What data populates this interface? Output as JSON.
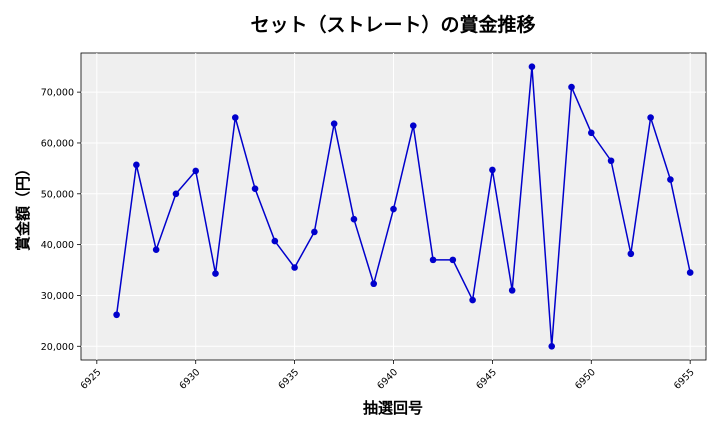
{
  "chart_data": {
    "type": "line",
    "title": "セット（ストレート）の賞金推移",
    "xlabel": "抽選回号",
    "ylabel": "賞金額（円）",
    "xlim": [
      6924.2,
      6955.8
    ],
    "ylim": [
      17300,
      77700
    ],
    "x_ticks": [
      6925,
      6930,
      6935,
      6940,
      6945,
      6950,
      6955
    ],
    "x_tick_labels": [
      "6925",
      "6930",
      "6935",
      "6940",
      "6945",
      "6950",
      "6955"
    ],
    "y_ticks": [
      20000,
      30000,
      40000,
      50000,
      60000,
      70000
    ],
    "y_tick_labels": [
      "20,000",
      "30,000",
      "40,000",
      "50,000",
      "60,000",
      "70,000"
    ],
    "grid": true,
    "line_color": "#0000cc",
    "background_color": "#efefef",
    "series": [
      {
        "x": [
          6926,
          6927,
          6928,
          6929,
          6930,
          6931,
          6932,
          6933,
          6934,
          6935,
          6936,
          6937,
          6938,
          6939,
          6940,
          6941,
          6942,
          6943,
          6944,
          6945,
          6946,
          6947,
          6948,
          6949,
          6950,
          6951,
          6952,
          6953,
          6954,
          6955
        ],
        "values": [
          26200,
          55700,
          39000,
          50000,
          54500,
          34300,
          65000,
          51000,
          40700,
          35500,
          42500,
          63800,
          45000,
          32300,
          47000,
          63400,
          37000,
          37000,
          29100,
          54700,
          31000,
          75000,
          20000,
          71000,
          62000,
          56500,
          38200,
          65000,
          52800,
          34500
        ]
      }
    ]
  }
}
